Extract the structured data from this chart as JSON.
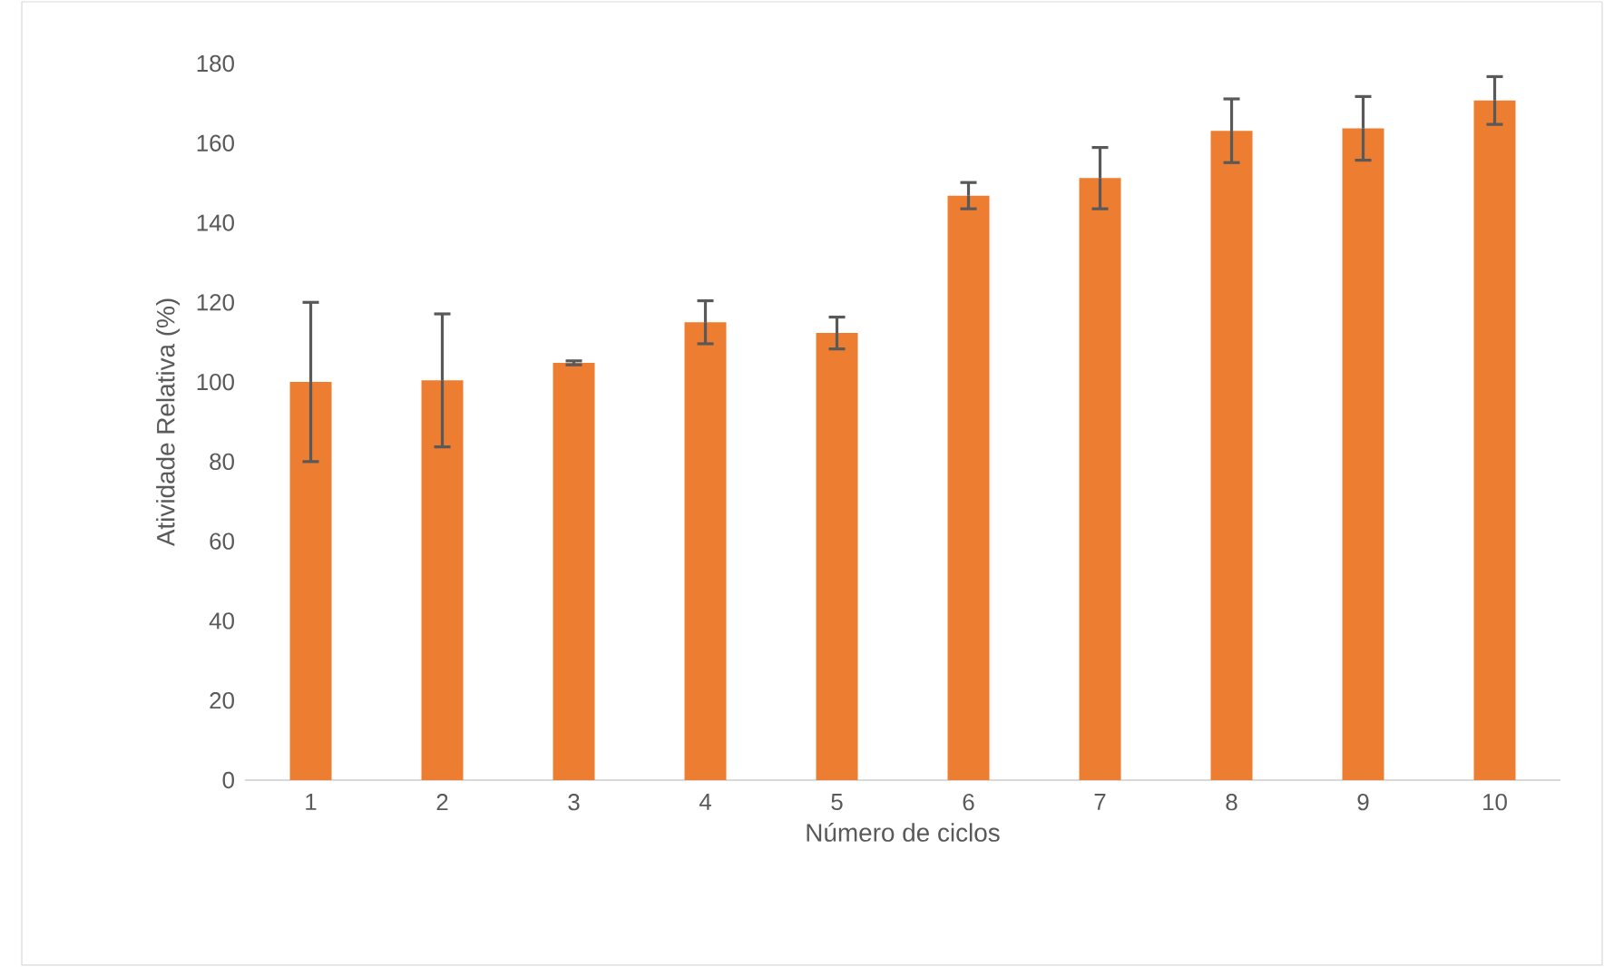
{
  "chart_data": {
    "type": "bar",
    "xlabel": "Número de ciclos",
    "ylabel": "Atividade Relativa (%)",
    "categories": [
      "1",
      "2",
      "3",
      "4",
      "5",
      "6",
      "7",
      "8",
      "9",
      "10"
    ],
    "values": [
      100,
      100.4,
      104.8,
      115,
      112.3,
      146.8,
      151.2,
      163.1,
      163.7,
      170.7
    ],
    "errors": [
      20,
      16.7,
      0.5,
      5.4,
      4,
      3.3,
      7.7,
      8,
      8,
      6
    ],
    "color": "#ed7d31",
    "ylim": [
      0,
      180
    ],
    "yticks": [
      0,
      20,
      40,
      60,
      80,
      100,
      120,
      140,
      160,
      180
    ]
  }
}
